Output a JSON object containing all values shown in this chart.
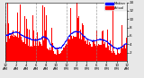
{
  "bar_color": "#ff0000",
  "line_color": "#0000ff",
  "background_color": "#e8e8e8",
  "plot_bg_color": "#ffffff",
  "ylim": [
    0,
    14
  ],
  "xlim": [
    0,
    1440
  ],
  "ytick_values": [
    2,
    4,
    6,
    8,
    10,
    12,
    14
  ],
  "legend_labels": [
    "Median",
    "Actual"
  ],
  "legend_colors": [
    "#0000ff",
    "#ff0000"
  ],
  "vline_positions": [
    0,
    360,
    720,
    1080,
    1440
  ],
  "vline_color": "#888888",
  "num_points": 1440,
  "random_seed": 42
}
